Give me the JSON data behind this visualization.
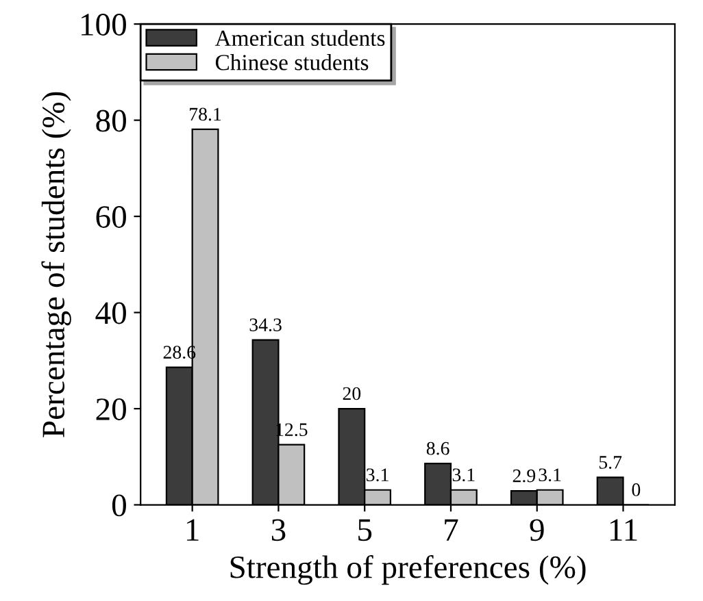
{
  "chart_data": {
    "type": "bar",
    "xlabel": "Strength of preferences (%)",
    "ylabel": "Percentage of students (%)",
    "categories": [
      "1",
      "3",
      "5",
      "7",
      "9",
      "11"
    ],
    "series": [
      {
        "name": "American students",
        "color": "#3c3c3c",
        "values": [
          28.6,
          34.3,
          20,
          8.6,
          2.9,
          5.7
        ]
      },
      {
        "name": "Chinese students",
        "color": "#c0c0c0",
        "values": [
          78.1,
          12.5,
          3.1,
          3.1,
          3.1,
          0
        ]
      }
    ],
    "ylim": [
      0,
      100
    ],
    "yticks": [
      0,
      20,
      40,
      60,
      80,
      100
    ],
    "data_labels": true,
    "legend": "top left",
    "grid": false
  }
}
